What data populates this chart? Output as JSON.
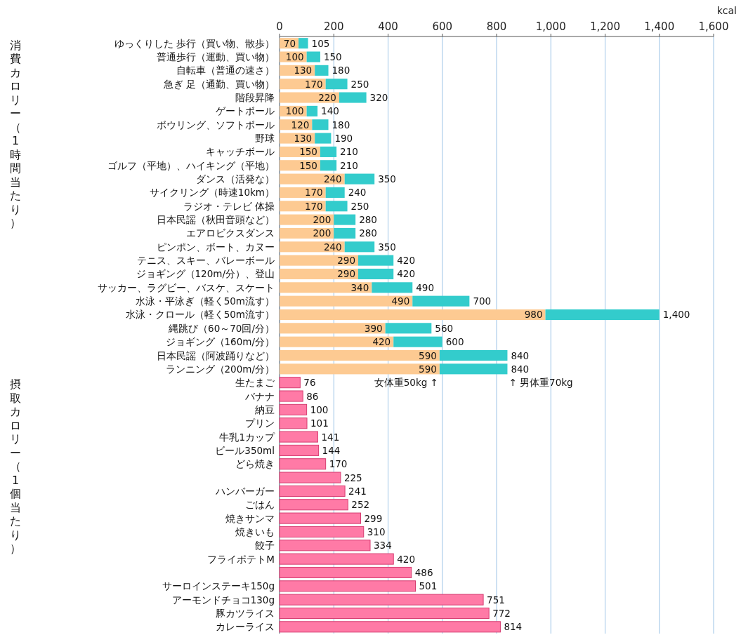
{
  "chart_data": {
    "type": "bar",
    "orientation": "horizontal",
    "stacked": true,
    "xlabel": "kcal",
    "categories": [
      "ゆっくりした 歩行（買い物、散歩）",
      "普通歩行（運動、買い物）",
      "自転車（普通の速さ）",
      "急ぎ 足（通勤、買い物）",
      "階段昇降",
      "ゲートボール",
      "ボウリング、ソフトボール",
      "野球",
      "キャッチボール",
      "ゴルフ（平地）、ハイキング（平地）",
      "ダンス（活発な）",
      "サイクリング（時速10km）",
      "ラジオ・テレビ 体操",
      "日本民謡（秋田音頭など）",
      "エアロビクスダンス",
      "ピンポン、ボート、カヌー",
      "テニス、スキー、バレーボール",
      "ジョギング（120m/分）、登山",
      "サッカー、ラグビー、バスケ、スケート",
      "水泳・平泳ぎ（軽く50m流す）",
      "水泳・クロール（軽く50m流す）",
      "縄跳び（60～70回/分）",
      "ジョギング（160m/分）",
      "日本民謡（阿波踊りなど）",
      "ランニング（200m/分）",
      "生たまご",
      "バナナ",
      "納豆",
      "プリン",
      "牛乳1カップ",
      "ビール350ml",
      "どら焼き",
      null,
      "ハンバーガー",
      "ごはん",
      "焼きサンマ",
      "焼きいも",
      "餃子",
      "フライポテトM",
      null,
      "サーロインステーキ150g",
      "アーモンドチョコ130g",
      "豚カツライス",
      "カレーライス"
    ],
    "series": [
      {
        "color": "#fdca92",
        "values": [
          70,
          100,
          130,
          170,
          220,
          100,
          120,
          130,
          150,
          150,
          240,
          170,
          170,
          200,
          200,
          240,
          290,
          290,
          340,
          490,
          980,
          390,
          420,
          590,
          590,
          null,
          null,
          null,
          null,
          null,
          null,
          null,
          null,
          null,
          null,
          null,
          null,
          null,
          null,
          null,
          null,
          null,
          null,
          null
        ],
        "value_labels": [
          "70",
          "100",
          "130",
          "170",
          "220",
          "100",
          "120",
          "130",
          "150",
          "150",
          "240",
          "170",
          "170",
          "200",
          "200",
          "240",
          "290",
          "290",
          "340",
          "490",
          "980",
          "390",
          "420",
          "590",
          "590",
          null,
          null,
          null,
          null,
          null,
          null,
          null,
          null,
          null,
          null,
          null,
          null,
          null,
          null,
          null,
          null,
          null,
          null,
          null
        ]
      },
      {
        "color": "#33cccc",
        "values": [
          35,
          50,
          50,
          80,
          100,
          40,
          60,
          60,
          60,
          60,
          110,
          70,
          80,
          80,
          80,
          110,
          130,
          130,
          150,
          210,
          420,
          170,
          180,
          250,
          250,
          null,
          null,
          null,
          null,
          null,
          null,
          null,
          null,
          null,
          null,
          null,
          null,
          null,
          null,
          null,
          null,
          null,
          null,
          null
        ]
      },
      {
        "color": "#ff7aa6",
        "values": [
          null,
          null,
          null,
          null,
          null,
          null,
          null,
          null,
          null,
          null,
          null,
          null,
          null,
          null,
          null,
          null,
          null,
          null,
          null,
          null,
          null,
          null,
          null,
          null,
          null,
          76,
          86,
          100,
          101,
          141,
          144,
          170,
          225,
          241,
          252,
          299,
          310,
          334,
          420,
          486,
          501,
          751,
          772,
          814
        ],
        "value_labels": [
          null,
          null,
          null,
          null,
          null,
          null,
          null,
          null,
          null,
          null,
          null,
          null,
          null,
          null,
          null,
          null,
          null,
          null,
          null,
          null,
          null,
          null,
          null,
          null,
          null,
          "76",
          "86",
          "100",
          "101",
          "141",
          "144",
          "170",
          "225",
          "241",
          "252",
          "299",
          "310",
          "334",
          "420",
          "486",
          "501",
          "751",
          "772",
          "814"
        ]
      }
    ],
    "totals": [
      "105",
      "150",
      "180",
      "250",
      "320",
      "140",
      "180",
      "190",
      "210",
      "210",
      "350",
      "240",
      "250",
      "280",
      "280",
      "350",
      "420",
      "420",
      "490",
      "700",
      "1,400",
      "560",
      "600",
      "840",
      "840",
      null,
      null,
      null,
      null,
      null,
      null,
      null,
      null,
      null,
      null,
      null,
      null,
      null,
      null,
      null,
      null,
      null,
      null,
      null
    ],
    "xlim": [
      0,
      1600
    ],
    "xticks": [
      0,
      200,
      400,
      600,
      800,
      {
        "value": 1000,
        "label": "1,000"
      },
      {
        "value": 1200,
        "label": "1,200"
      },
      {
        "value": 1400,
        "label": "1,400"
      },
      {
        "value": 1600,
        "label": "1,600"
      }
    ],
    "grid": "x",
    "annotations": [
      "女体重50kg ↑",
      "↑ 男体重70kg",
      "消費カロリー（1時間当たり）",
      "摂取カロリー（1個当たり）"
    ]
  }
}
